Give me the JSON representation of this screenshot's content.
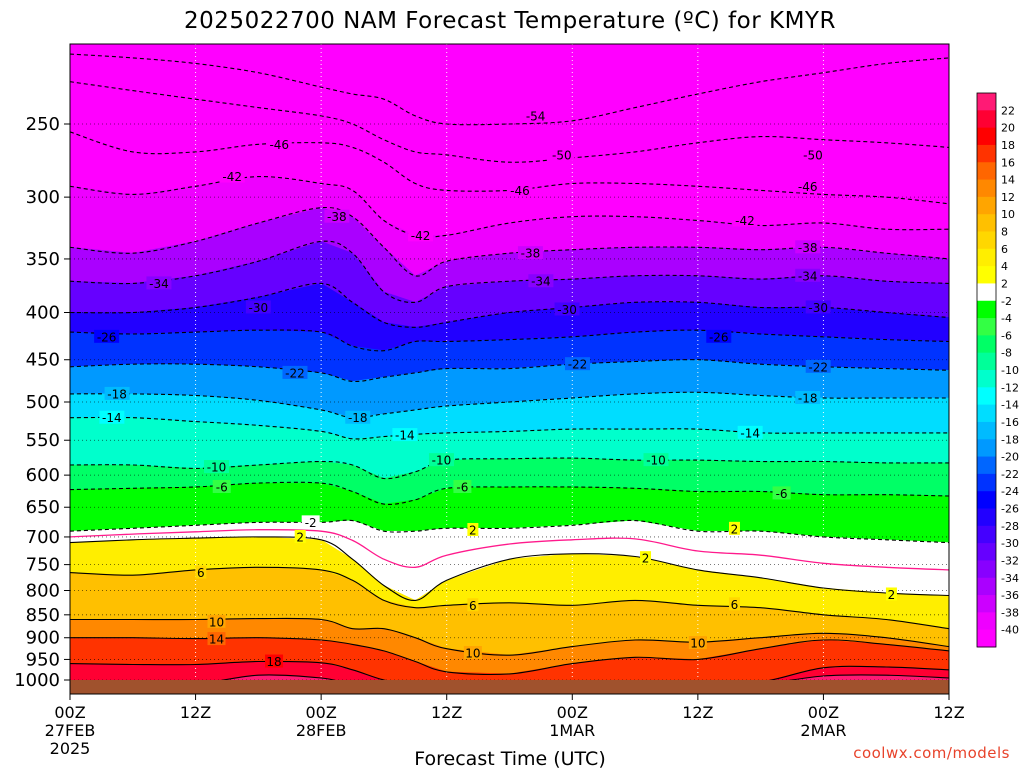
{
  "chart_data": {
    "type": "heatmap",
    "title": "2025022700 NAM Forecast Temperature (ºC) for KMYR",
    "xlabel": "Forecast Time (UTC)",
    "ylabel": "",
    "credit": "coolwx.com/models",
    "y_scale": "log-pressure",
    "ylim": [
      1000,
      200
    ],
    "xlim_hours": [
      0,
      84
    ],
    "grid": true,
    "y_ticks": [
      250,
      300,
      350,
      400,
      450,
      500,
      550,
      600,
      650,
      700,
      750,
      800,
      850,
      900,
      950,
      1000
    ],
    "x_ticks": [
      {
        "hour": 0,
        "line1": "00Z",
        "line2": "27FEB",
        "line3": "2025"
      },
      {
        "hour": 12,
        "line1": "12Z",
        "line2": "",
        "line3": ""
      },
      {
        "hour": 24,
        "line1": "00Z",
        "line2": "28FEB",
        "line3": ""
      },
      {
        "hour": 36,
        "line1": "12Z",
        "line2": "",
        "line3": ""
      },
      {
        "hour": 48,
        "line1": "00Z",
        "line2": "1MAR",
        "line3": ""
      },
      {
        "hour": 60,
        "line1": "12Z",
        "line2": "",
        "line3": ""
      },
      {
        "hour": 72,
        "line1": "00Z",
        "line2": "2MAR",
        "line3": ""
      },
      {
        "hour": 84,
        "line1": "12Z",
        "line2": "",
        "line3": ""
      }
    ],
    "time_hours": [
      0,
      6,
      12,
      18,
      24,
      27,
      30,
      33,
      36,
      42,
      48,
      54,
      60,
      66,
      72,
      78,
      84
    ],
    "isotherms": [
      {
        "t": -54,
        "p": [
          210,
          212,
          215,
          220,
          228,
          232,
          235,
          245,
          250,
          250,
          248,
          240,
          232,
          225,
          220,
          215,
          212
        ]
      },
      {
        "t": -50,
        "p": [
          225,
          230,
          235,
          240,
          245,
          250,
          260,
          268,
          270,
          275,
          272,
          268,
          262,
          258,
          260,
          262,
          265
        ]
      },
      {
        "t": -46,
        "p": [
          255,
          268,
          268,
          263,
          262,
          265,
          275,
          290,
          295,
          295,
          290,
          290,
          292,
          295,
          298,
          300,
          305
        ]
      },
      {
        "t": -42,
        "p": [
          292,
          298,
          292,
          285,
          290,
          295,
          318,
          330,
          330,
          320,
          315,
          315,
          318,
          322,
          320,
          325,
          325
        ]
      },
      {
        "t": -38,
        "p": [
          340,
          345,
          335,
          320,
          308,
          315,
          340,
          365,
          352,
          345,
          342,
          340,
          340,
          342,
          340,
          345,
          350
        ]
      },
      {
        "t": -34,
        "p": [
          370,
          372,
          365,
          352,
          335,
          345,
          380,
          390,
          375,
          370,
          368,
          365,
          365,
          368,
          365,
          370,
          372
        ]
      },
      {
        "t": -30,
        "p": [
          400,
          400,
          395,
          385,
          372,
          390,
          410,
          415,
          410,
          400,
          395,
          390,
          390,
          395,
          395,
          400,
          405
        ]
      },
      {
        "t": -26,
        "p": [
          420,
          422,
          420,
          418,
          420,
          435,
          440,
          430,
          430,
          428,
          425,
          420,
          418,
          422,
          425,
          428,
          430
        ]
      },
      {
        "t": -22,
        "p": [
          458,
          455,
          455,
          458,
          465,
          475,
          470,
          465,
          460,
          460,
          455,
          452,
          450,
          455,
          458,
          460,
          462
        ]
      },
      {
        "t": -18,
        "p": [
          490,
          490,
          492,
          498,
          510,
          520,
          515,
          510,
          505,
          500,
          495,
          490,
          488,
          492,
          495,
          495,
          495
        ]
      },
      {
        "t": -14,
        "p": [
          520,
          520,
          525,
          530,
          538,
          548,
          545,
          542,
          540,
          538,
          535,
          535,
          535,
          540,
          540,
          540,
          540
        ]
      },
      {
        "t": -10,
        "p": [
          585,
          585,
          590,
          585,
          580,
          585,
          605,
          595,
          578,
          576,
          575,
          578,
          578,
          580,
          580,
          582,
          582
        ]
      },
      {
        "t": -6,
        "p": [
          622,
          620,
          618,
          612,
          612,
          625,
          645,
          638,
          620,
          618,
          618,
          620,
          625,
          625,
          630,
          630,
          632
        ]
      },
      {
        "t": -2,
        "p": [
          690,
          685,
          680,
          675,
          675,
          672,
          690,
          690,
          685,
          685,
          680,
          672,
          690,
          690,
          700,
          705,
          710
        ]
      },
      {
        "t": 2,
        "p": [
          710,
          705,
          702,
          700,
          705,
          740,
          790,
          820,
          780,
          740,
          730,
          735,
          760,
          775,
          795,
          805,
          810
        ]
      },
      {
        "t": 6,
        "p": [
          765,
          770,
          760,
          755,
          760,
          780,
          820,
          835,
          830,
          825,
          830,
          820,
          830,
          835,
          850,
          860,
          880
        ]
      },
      {
        "t": 10,
        "p": [
          860,
          860,
          860,
          858,
          860,
          880,
          880,
          900,
          925,
          940,
          920,
          905,
          910,
          900,
          890,
          900,
          920
        ]
      },
      {
        "t": 14,
        "p": [
          900,
          900,
          902,
          900,
          905,
          915,
          930,
          955,
          980,
          985,
          960,
          945,
          950,
          925,
          905,
          915,
          930
        ]
      },
      {
        "t": 18,
        "p": [
          960,
          962,
          962,
          955,
          958,
          975,
          1000,
          1010,
          1010,
          1010,
          1010,
          1010,
          1010,
          1005,
          970,
          968,
          975
        ]
      },
      {
        "t": 22,
        "p": [
          1010,
          1010,
          1010,
          988,
          995,
          1010,
          1010,
          1010,
          1010,
          1010,
          1010,
          1010,
          1010,
          1010,
          990,
          988,
          995
        ]
      }
    ],
    "contour_labels": [
      {
        "v": "-54",
        "hour": 44.5,
        "p": 245
      },
      {
        "v": "-50",
        "hour": 47,
        "p": 270
      },
      {
        "v": "-50",
        "hour": 71,
        "p": 270
      },
      {
        "v": "-46",
        "hour": 20,
        "p": 263
      },
      {
        "v": "-46",
        "hour": 43,
        "p": 295
      },
      {
        "v": "-46",
        "hour": 70.5,
        "p": 292
      },
      {
        "v": "-42",
        "hour": 15.5,
        "p": 285
      },
      {
        "v": "-42",
        "hour": 33.5,
        "p": 330
      },
      {
        "v": "-42",
        "hour": 64.5,
        "p": 318
      },
      {
        "v": "-38",
        "hour": 25.5,
        "p": 315
      },
      {
        "v": "-38",
        "hour": 44,
        "p": 345
      },
      {
        "v": "-38",
        "hour": 70.5,
        "p": 340
      },
      {
        "v": "-34",
        "hour": 8.5,
        "p": 372
      },
      {
        "v": "-34",
        "hour": 45,
        "p": 370
      },
      {
        "v": "-34",
        "hour": 70.5,
        "p": 365
      },
      {
        "v": "-30",
        "hour": 18,
        "p": 395
      },
      {
        "v": "-30",
        "hour": 47.5,
        "p": 397
      },
      {
        "v": "-30",
        "hour": 71.5,
        "p": 395
      },
      {
        "v": "-26",
        "hour": 3.5,
        "p": 425
      },
      {
        "v": "-26",
        "hour": 62,
        "p": 425
      },
      {
        "v": "-22",
        "hour": 21.5,
        "p": 465
      },
      {
        "v": "-22",
        "hour": 48.5,
        "p": 455
      },
      {
        "v": "-22",
        "hour": 71.5,
        "p": 458
      },
      {
        "v": "-18",
        "hour": 4.5,
        "p": 490
      },
      {
        "v": "-18",
        "hour": 27.5,
        "p": 520
      },
      {
        "v": "-18",
        "hour": 70.5,
        "p": 495
      },
      {
        "v": "-14",
        "hour": 4,
        "p": 520
      },
      {
        "v": "-14",
        "hour": 32,
        "p": 543
      },
      {
        "v": "-14",
        "hour": 65,
        "p": 540
      },
      {
        "v": "-10",
        "hour": 14,
        "p": 588
      },
      {
        "v": "-10",
        "hour": 35.5,
        "p": 578
      },
      {
        "v": "-10",
        "hour": 56,
        "p": 578
      },
      {
        "v": "-6",
        "hour": 14.5,
        "p": 618
      },
      {
        "v": "-6",
        "hour": 37.5,
        "p": 618
      },
      {
        "v": "-6",
        "hour": 68,
        "p": 628
      },
      {
        "v": "-2",
        "hour": 23,
        "p": 675
      },
      {
        "v": "2",
        "hour": 22,
        "p": 700
      },
      {
        "v": "2",
        "hour": 38.5,
        "p": 688
      },
      {
        "v": "2",
        "hour": 55,
        "p": 738
      },
      {
        "v": "2",
        "hour": 63.5,
        "p": 686
      },
      {
        "v": "2",
        "hour": 78.5,
        "p": 808
      },
      {
        "v": "6",
        "hour": 12.5,
        "p": 765
      },
      {
        "v": "6",
        "hour": 38.5,
        "p": 830
      },
      {
        "v": "6",
        "hour": 63.5,
        "p": 828
      },
      {
        "v": "10",
        "hour": 14,
        "p": 865
      },
      {
        "v": "10",
        "hour": 38.5,
        "p": 935
      },
      {
        "v": "10",
        "hour": 60,
        "p": 912
      },
      {
        "v": "14",
        "hour": 14,
        "p": 903
      },
      {
        "v": "18",
        "hour": 19.5,
        "p": 955
      }
    ]
  },
  "colorbar": {
    "labels": [
      "22",
      "20",
      "18",
      "16",
      "14",
      "12",
      "10",
      "8",
      "6",
      "4",
      "2",
      "-2",
      "-4",
      "-6",
      "-8",
      "-10",
      "-12",
      "-14",
      "-16",
      "-18",
      "-20",
      "-22",
      "-24",
      "-26",
      "-28",
      "-30",
      "-32",
      "-34",
      "-36",
      "-38",
      "-40"
    ],
    "bands": [
      {
        "lo": 22,
        "hi": 99,
        "color": "#ff1a75"
      },
      {
        "lo": 20,
        "hi": 22,
        "color": "#ff0033"
      },
      {
        "lo": 18,
        "hi": 20,
        "color": "#ff0000"
      },
      {
        "lo": 16,
        "hi": 18,
        "color": "#ff3300"
      },
      {
        "lo": 14,
        "hi": 16,
        "color": "#ff6600"
      },
      {
        "lo": 12,
        "hi": 14,
        "color": "#ff8800"
      },
      {
        "lo": 10,
        "hi": 12,
        "color": "#ffa500"
      },
      {
        "lo": 8,
        "hi": 10,
        "color": "#ffc000"
      },
      {
        "lo": 6,
        "hi": 8,
        "color": "#ffd700"
      },
      {
        "lo": 4,
        "hi": 6,
        "color": "#ffee00"
      },
      {
        "lo": 2,
        "hi": 4,
        "color": "#ffff00"
      },
      {
        "lo": -2,
        "hi": 2,
        "color": "#ffffff"
      },
      {
        "lo": -4,
        "hi": -2,
        "color": "#00ff00"
      },
      {
        "lo": -6,
        "hi": -4,
        "color": "#33ff44"
      },
      {
        "lo": -8,
        "hi": -6,
        "color": "#00ff66"
      },
      {
        "lo": -10,
        "hi": -8,
        "color": "#00ff99"
      },
      {
        "lo": -12,
        "hi": -10,
        "color": "#00ffcc"
      },
      {
        "lo": -14,
        "hi": -12,
        "color": "#00ffff"
      },
      {
        "lo": -16,
        "hi": -14,
        "color": "#00ddff"
      },
      {
        "lo": -18,
        "hi": -16,
        "color": "#00bbff"
      },
      {
        "lo": -20,
        "hi": -18,
        "color": "#0099ff"
      },
      {
        "lo": -22,
        "hi": -20,
        "color": "#0066ff"
      },
      {
        "lo": -24,
        "hi": -22,
        "color": "#0033ff"
      },
      {
        "lo": -26,
        "hi": -24,
        "color": "#0000ff"
      },
      {
        "lo": -28,
        "hi": -26,
        "color": "#2200ff"
      },
      {
        "lo": -30,
        "hi": -28,
        "color": "#4400ff"
      },
      {
        "lo": -32,
        "hi": -30,
        "color": "#6600ff"
      },
      {
        "lo": -34,
        "hi": -32,
        "color": "#8800ff"
      },
      {
        "lo": -36,
        "hi": -34,
        "color": "#aa00ff"
      },
      {
        "lo": -38,
        "hi": -36,
        "color": "#cc00ff"
      },
      {
        "lo": -40,
        "hi": -38,
        "color": "#ee00ff"
      },
      {
        "lo": -99,
        "hi": -40,
        "color": "#ff00ff"
      }
    ],
    "ground_color": "#a0522d",
    "freezing_line_color": "#ff1a8c"
  }
}
